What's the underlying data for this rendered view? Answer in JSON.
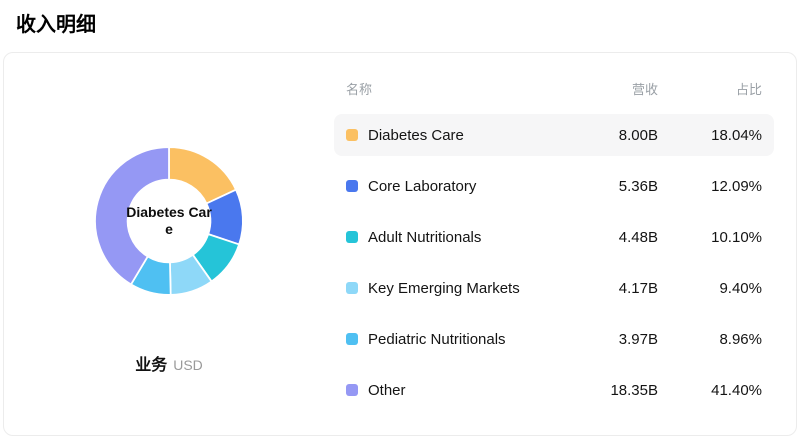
{
  "page": {
    "title": "收入明细"
  },
  "card": {
    "center_label": "Diabetes Care",
    "footer": {
      "label": "业务",
      "unit": "USD"
    }
  },
  "table": {
    "headers": {
      "name": "名称",
      "revenue": "营收",
      "share": "占比"
    },
    "rows": [
      {
        "name": "Diabetes Care",
        "revenue": "8.00B",
        "share": "18.04%",
        "color": "#FBC062",
        "highlighted": true
      },
      {
        "name": "Core Laboratory",
        "revenue": "5.36B",
        "share": "12.09%",
        "color": "#4A78EE",
        "highlighted": false
      },
      {
        "name": "Adult Nutritionals",
        "revenue": "4.48B",
        "share": "10.10%",
        "color": "#25C4D8",
        "highlighted": false
      },
      {
        "name": "Key Emerging Markets",
        "revenue": "4.17B",
        "share": "9.40%",
        "color": "#8ED8F8",
        "highlighted": false
      },
      {
        "name": "Pediatric Nutritionals",
        "revenue": "3.97B",
        "share": "8.96%",
        "color": "#4FC0F2",
        "highlighted": false
      },
      {
        "name": "Other",
        "revenue": "18.35B",
        "share": "41.40%",
        "color": "#9598F4",
        "highlighted": false
      }
    ]
  },
  "chart_data": {
    "type": "pie",
    "donut": true,
    "title": "收入明细",
    "center_label": "Diabetes Care",
    "categories": [
      "Diabetes Care",
      "Core Laboratory",
      "Adult Nutritionals",
      "Key Emerging Markets",
      "Pediatric Nutritionals",
      "Other"
    ],
    "values": [
      8.0,
      5.36,
      4.48,
      4.17,
      3.97,
      18.35
    ],
    "percentages": [
      18.04,
      12.09,
      10.1,
      9.4,
      8.96,
      41.4
    ],
    "unit": "B",
    "currency": "USD",
    "colors": [
      "#FBC062",
      "#4A78EE",
      "#25C4D8",
      "#8ED8F8",
      "#4FC0F2",
      "#9598F4"
    ],
    "start_angle_deg": -90,
    "direction": "clockwise",
    "legend_position": "right-table"
  }
}
